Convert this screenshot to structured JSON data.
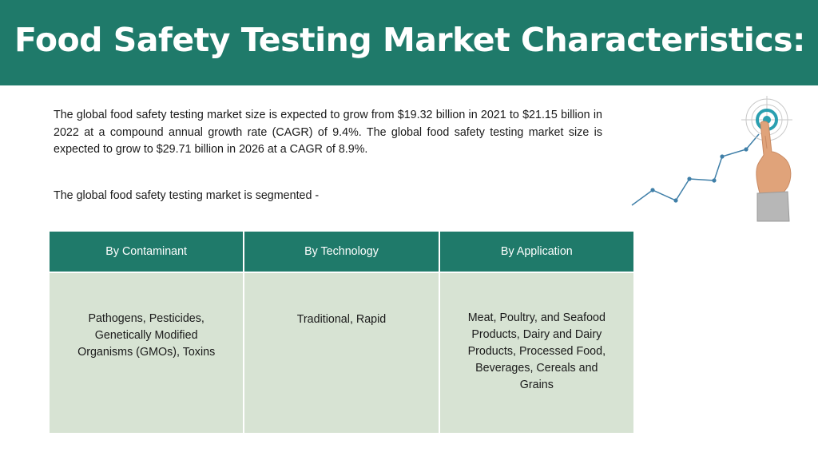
{
  "slide": {
    "title": "Food Safety Testing Market Characteristics:",
    "paragraph": "The global food safety testing market size is expected to grow from $19.32 billion in 2021 to $21.15 billion in 2022 at a compound annual growth rate (CAGR) of 9.4%. The global food safety testing market size is expected to grow to $29.71 billion in 2026 at a CAGR of 8.9%.",
    "segmented_text": "The global food safety testing market is segmented  -"
  },
  "table": {
    "headers": [
      "By Contaminant",
      "By Technology",
      "By Application"
    ],
    "cells": [
      "Pathogens, Pesticides, Genetically Modified Organisms (GMOs), Toxins",
      "Traditional, Rapid",
      "Meat, Poultry, and Seafood Products, Dairy and Dairy Products, Processed Food, Beverages,  Cereals and Grains"
    ]
  },
  "colors": {
    "accent": "#1f7a6a",
    "cell_background": "#d7e3d3"
  }
}
